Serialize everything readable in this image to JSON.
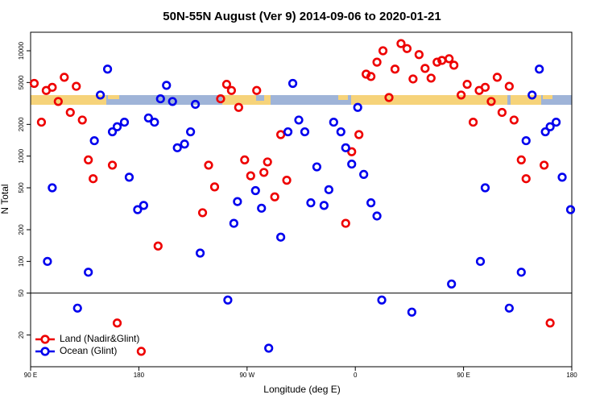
{
  "chart_data": {
    "type": "scatter",
    "title": "50N-55N August (Ver 9)   2014-09-06 to 2020-01-21",
    "x_label": "Longitude (deg E)",
    "y_label": "N Total",
    "xlim": [
      90,
      540
    ],
    "ylim": [
      10,
      15000
    ],
    "ylog": true,
    "hline": 50,
    "legend": "bottom-left",
    "xticks": [
      {
        "value": 90,
        "label": "90 E"
      },
      {
        "value": 180,
        "label": "180"
      },
      {
        "value": 270,
        "label": "90 W"
      },
      {
        "value": 360,
        "label": "0"
      },
      {
        "value": 450,
        "label": "90 E"
      },
      {
        "value": 540,
        "label": "180"
      }
    ],
    "yticks": [
      20,
      50,
      100,
      200,
      500,
      1000,
      2000,
      5000,
      10000
    ],
    "series": [
      {
        "name": "Land (Nadir&Glint)",
        "color": "#ee0000",
        "x": [
          93,
          99,
          103,
          108,
          113,
          118,
          123,
          128,
          133,
          138,
          142,
          158,
          162,
          182,
          196,
          233,
          238,
          243,
          248,
          253,
          257,
          263,
          268,
          273,
          278,
          284,
          287,
          293,
          298,
          303,
          352,
          357,
          363,
          369,
          373,
          378,
          383,
          388,
          393,
          398,
          403,
          408,
          413,
          418,
          423,
          428,
          432,
          438,
          442,
          448,
          453,
          458,
          463,
          468,
          473,
          478,
          482,
          488,
          492,
          498,
          502,
          517,
          522
        ],
        "values": [
          4900,
          2100,
          4200,
          4500,
          3300,
          5600,
          2600,
          4600,
          2200,
          920,
          610,
          820,
          26,
          14,
          140,
          290,
          820,
          510,
          3500,
          4800,
          4200,
          2900,
          920,
          650,
          4200,
          700,
          880,
          410,
          1600,
          590,
          230,
          1100,
          1600,
          6000,
          5700,
          7800,
          10000,
          3600,
          6700,
          11700,
          10500,
          5400,
          9200,
          6800,
          5500,
          7800,
          8100,
          8400,
          7300,
          3800,
          4800,
          2100,
          4200,
          4500,
          3300,
          5600,
          2600,
          4600,
          2200,
          920,
          610,
          820,
          26
        ]
      },
      {
        "name": "Ocean (Glint)",
        "color": "#0000ee",
        "x": [
          104,
          108,
          129,
          138,
          143,
          148,
          154,
          158,
          162,
          168,
          172,
          179,
          184,
          188,
          193,
          198,
          203,
          208,
          212,
          218,
          223,
          227,
          231,
          254,
          259,
          262,
          277,
          282,
          288,
          298,
          304,
          308,
          313,
          318,
          323,
          328,
          334,
          338,
          342,
          348,
          352,
          357,
          362,
          367,
          373,
          378,
          382,
          407,
          440,
          464,
          468,
          488,
          498,
          502,
          507,
          513,
          518,
          522,
          527,
          532,
          539
        ],
        "values": [
          100,
          500,
          36,
          79,
          1400,
          3800,
          6700,
          1700,
          1900,
          2100,
          630,
          310,
          340,
          2300,
          2100,
          3500,
          4700,
          3300,
          1200,
          1300,
          1700,
          3100,
          120,
          43,
          230,
          370,
          470,
          320,
          15,
          170,
          1700,
          4900,
          2200,
          1700,
          360,
          790,
          340,
          480,
          2100,
          1700,
          1200,
          840,
          2900,
          670,
          360,
          270,
          43,
          33,
          61,
          100,
          500,
          36,
          79,
          1400,
          3800,
          6700,
          1700,
          1900,
          2100,
          630,
          310
        ]
      }
    ]
  }
}
